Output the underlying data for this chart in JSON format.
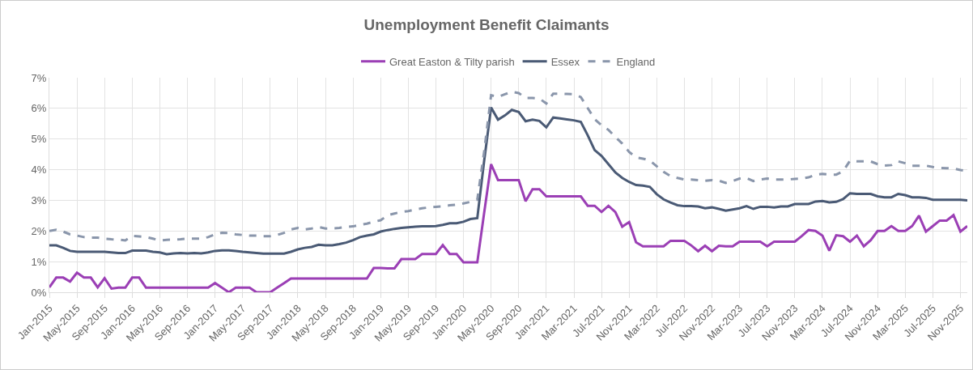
{
  "chart_data": {
    "type": "line",
    "title": "Unemployment Benefit Claimants",
    "categories": [
      "Jan-2015",
      null,
      null,
      null,
      "May-2015",
      null,
      null,
      null,
      "Sep-2015",
      null,
      null,
      null,
      "Jan-2016",
      null,
      null,
      null,
      "May-2016",
      null,
      null,
      null,
      "Sep-2016",
      null,
      null,
      null,
      "Jan-2017",
      null,
      null,
      null,
      "May-2017",
      null,
      null,
      null,
      "Sep-2017",
      null,
      null,
      null,
      "Jan-2018",
      null,
      null,
      null,
      "May-2018",
      null,
      null,
      null,
      "Sep-2018",
      null,
      null,
      null,
      "Jan-2019",
      null,
      null,
      null,
      "May-2019",
      null,
      null,
      null,
      "Sep-2019",
      null,
      null,
      null,
      "Jan-2020",
      null,
      null,
      null,
      "May-2020",
      null,
      null,
      null,
      "Sep-2020",
      null,
      null,
      null,
      "Jan-2021",
      null,
      null,
      null,
      "Mar-2021",
      null,
      null,
      null,
      "Jul-2021",
      null,
      null,
      null,
      "Nov-2021",
      null,
      null,
      null,
      "Mar-2022",
      null,
      null,
      null,
      "Jul-2022",
      null,
      null,
      null,
      "Nov-2022",
      null,
      null,
      null,
      "Mar-2023",
      null,
      null,
      null,
      "Jul-2023",
      null,
      null,
      null,
      "Nov-2023",
      null,
      null,
      null,
      "Mar-2024",
      null,
      null,
      null,
      "Jul-2024",
      null,
      null,
      null,
      "Nov-2024",
      null,
      null,
      null,
      "Mar-2025",
      null,
      null,
      null,
      "Jul-2025",
      null,
      null,
      null,
      "Nov-2025",
      null
    ],
    "series": [
      {
        "name": "Great Easton & Tilty parish",
        "color": "#9b3fb5",
        "line_style": "solid",
        "values": [
          0.16,
          0.48,
          0.48,
          0.35,
          0.64,
          0.48,
          0.48,
          0.16,
          0.46,
          0.12,
          0.15,
          0.15,
          0.48,
          0.48,
          0.15,
          0.15,
          0.15,
          0.15,
          0.15,
          0.15,
          0.15,
          0.15,
          0.15,
          0.15,
          0.3,
          0.15,
          0,
          0.15,
          0.15,
          0.15,
          0,
          0,
          0,
          0.15,
          0.3,
          0.45,
          0.45,
          0.45,
          0.45,
          0.45,
          0.45,
          0.45,
          0.45,
          0.45,
          0.45,
          0.45,
          0.45,
          0.79,
          0.79,
          0.78,
          0.78,
          1.08,
          1.08,
          1.08,
          1.25,
          1.25,
          1.25,
          1.54,
          1.25,
          1.25,
          0.98,
          0.98,
          0.98,
          2.6,
          4.18,
          3.66,
          3.66,
          3.66,
          3.66,
          2.97,
          3.36,
          3.36,
          3.13,
          3.13,
          3.13,
          3.13,
          3.13,
          3.13,
          2.82,
          2.82,
          2.62,
          2.82,
          2.62,
          2.14,
          2.29,
          1.63,
          1.5,
          1.5,
          1.5,
          1.5,
          1.68,
          1.68,
          1.68,
          1.53,
          1.34,
          1.52,
          1.34,
          1.52,
          1.5,
          1.5,
          1.65,
          1.65,
          1.65,
          1.65,
          1.5,
          1.65,
          1.65,
          1.65,
          1.65,
          1.83,
          2.03,
          2,
          1.85,
          1.36,
          1.86,
          1.83,
          1.65,
          1.85,
          1.5,
          1.7,
          2,
          2,
          2.16,
          2,
          2,
          2.16,
          2.5,
          1.98,
          2.16,
          2.34,
          2.34,
          2.52,
          1.98,
          2.16
        ]
      },
      {
        "name": "Essex",
        "color": "#4a5a75",
        "line_style": "solid",
        "values": [
          1.53,
          1.53,
          1.45,
          1.35,
          1.32,
          1.32,
          1.32,
          1.32,
          1.32,
          1.3,
          1.28,
          1.28,
          1.36,
          1.36,
          1.36,
          1.32,
          1.3,
          1.24,
          1.27,
          1.28,
          1.27,
          1.28,
          1.27,
          1.3,
          1.35,
          1.37,
          1.37,
          1.35,
          1.32,
          1.3,
          1.28,
          1.26,
          1.26,
          1.26,
          1.26,
          1.32,
          1.4,
          1.45,
          1.48,
          1.55,
          1.53,
          1.53,
          1.57,
          1.62,
          1.7,
          1.8,
          1.85,
          1.89,
          1.98,
          2.03,
          2.07,
          2.1,
          2.12,
          2.14,
          2.15,
          2.15,
          2.16,
          2.2,
          2.25,
          2.25,
          2.3,
          2.39,
          2.42,
          4.3,
          6.03,
          5.63,
          5.77,
          5.95,
          5.88,
          5.58,
          5.63,
          5.59,
          5.38,
          5.7,
          5.67,
          5.64,
          5.61,
          5.56,
          5.12,
          4.64,
          4.45,
          4.18,
          3.91,
          3.73,
          3.6,
          3.5,
          3.48,
          3.44,
          3.2,
          3.03,
          2.93,
          2.84,
          2.81,
          2.81,
          2.8,
          2.74,
          2.77,
          2.72,
          2.66,
          2.7,
          2.74,
          2.81,
          2.72,
          2.79,
          2.79,
          2.77,
          2.8,
          2.8,
          2.88,
          2.88,
          2.88,
          2.96,
          2.98,
          2.93,
          2.95,
          3.04,
          3.23,
          3.21,
          3.21,
          3.21,
          3.13,
          3.1,
          3.1,
          3.21,
          3.17,
          3.1,
          3.1,
          3.08,
          3.02,
          3.02,
          3.02,
          3.02,
          3.02,
          3
        ]
      },
      {
        "name": "England",
        "color": "#8a96ab",
        "line_style": "dashed",
        "values": [
          2,
          2.04,
          1.98,
          1.89,
          1.85,
          1.8,
          1.78,
          1.78,
          1.75,
          1.73,
          1.72,
          1.69,
          1.84,
          1.82,
          1.8,
          1.75,
          1.69,
          1.71,
          1.72,
          1.73,
          1.75,
          1.75,
          1.75,
          1.8,
          1.89,
          1.94,
          1.93,
          1.89,
          1.87,
          1.85,
          1.85,
          1.83,
          1.83,
          1.87,
          1.94,
          2.05,
          2.1,
          2.05,
          2.08,
          2.13,
          2.08,
          2.08,
          2.1,
          2.13,
          2.15,
          2.2,
          2.24,
          2.3,
          2.35,
          2.51,
          2.57,
          2.62,
          2.65,
          2.7,
          2.74,
          2.77,
          2.79,
          2.8,
          2.84,
          2.86,
          2.9,
          2.95,
          3.02,
          4.6,
          6.43,
          6.37,
          6.46,
          6.54,
          6.5,
          6.34,
          6.34,
          6.32,
          6.16,
          6.48,
          6.48,
          6.47,
          6.46,
          6.37,
          6.01,
          5.65,
          5.45,
          5.3,
          5.07,
          4.85,
          4.58,
          4.4,
          4.36,
          4.3,
          4.11,
          3.93,
          3.79,
          3.73,
          3.68,
          3.68,
          3.66,
          3.64,
          3.66,
          3.64,
          3.57,
          3.63,
          3.71,
          3.73,
          3.63,
          3.68,
          3.71,
          3.68,
          3.68,
          3.68,
          3.7,
          3.71,
          3.75,
          3.84,
          3.86,
          3.84,
          3.84,
          3.95,
          4.29,
          4.27,
          4.27,
          4.27,
          4.18,
          4.13,
          4.15,
          4.27,
          4.21,
          4.13,
          4.13,
          4.13,
          4.09,
          4.06,
          4.05,
          4.04,
          3.99,
          3.95
        ]
      }
    ],
    "ylim": [
      0,
      7
    ],
    "yticks": [
      {
        "value": 0,
        "label": "0%"
      },
      {
        "value": 1,
        "label": "1%"
      },
      {
        "value": 2,
        "label": "2%"
      },
      {
        "value": 3,
        "label": "3%"
      },
      {
        "value": 4,
        "label": "4%"
      },
      {
        "value": 5,
        "label": "5%"
      },
      {
        "value": 6,
        "label": "6%"
      },
      {
        "value": 7,
        "label": "7%"
      }
    ],
    "grid": true,
    "legend": "top",
    "marker": "none"
  }
}
